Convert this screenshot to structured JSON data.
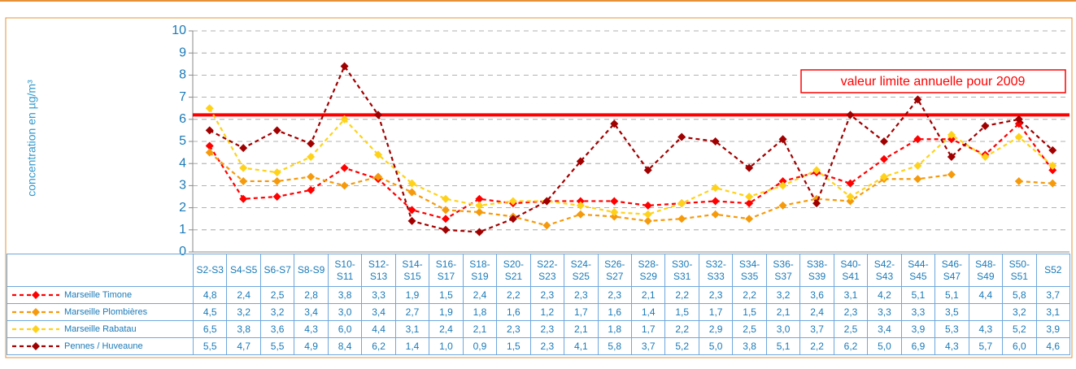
{
  "chart_data": {
    "type": "line",
    "y_label": "concentration en µg/m³",
    "categories": [
      "S2-S3",
      "S4-S5",
      "S6-S7",
      "S8-S9",
      "S10-S11",
      "S12-S13",
      "S14-S15",
      "S16-S17",
      "S18-S19",
      "S20-S21",
      "S22-S23",
      "S24-S25",
      "S26-S27",
      "S28-S29",
      "S30-S31",
      "S32-S33",
      "S34-S35",
      "S36-S37",
      "S38-S39",
      "S40-S41",
      "S42-S43",
      "S44-S45",
      "S46-S47",
      "S48-S49",
      "S50-S51",
      "S52"
    ],
    "series": [
      {
        "name": "Marseille Timone",
        "color": "#ff0000",
        "values": [
          4.8,
          2.4,
          2.5,
          2.8,
          3.8,
          3.3,
          1.9,
          1.5,
          2.4,
          2.2,
          2.3,
          2.3,
          2.3,
          2.1,
          2.2,
          2.3,
          2.2,
          3.2,
          3.6,
          3.1,
          4.2,
          5.1,
          5.1,
          4.4,
          5.8,
          3.7
        ],
        "value_labels": [
          "4,8",
          "2,4",
          "2,5",
          "2,8",
          "3,8",
          "3,3",
          "1,9",
          "1,5",
          "2,4",
          "2,2",
          "2,3",
          "2,3",
          "2,3",
          "2,1",
          "2,2",
          "2,3",
          "2,2",
          "3,2",
          "3,6",
          "3,1",
          "4,2",
          "5,1",
          "5,1",
          "4,4",
          "5,8",
          "3,7"
        ]
      },
      {
        "name": "Marseille Plombières",
        "color": "#f59a0c",
        "values": [
          4.5,
          3.2,
          3.2,
          3.4,
          3.0,
          3.4,
          2.7,
          1.9,
          1.8,
          1.6,
          1.2,
          1.7,
          1.6,
          1.4,
          1.5,
          1.7,
          1.5,
          2.1,
          2.4,
          2.3,
          3.3,
          3.3,
          3.5,
          null,
          3.2,
          3.1
        ],
        "value_labels": [
          "4,5",
          "3,2",
          "3,2",
          "3,4",
          "3,0",
          "3,4",
          "2,7",
          "1,9",
          "1,8",
          "1,6",
          "1,2",
          "1,7",
          "1,6",
          "1,4",
          "1,5",
          "1,7",
          "1,5",
          "2,1",
          "2,4",
          "2,3",
          "3,3",
          "3,3",
          "3,5",
          null,
          "3,2",
          "3,1"
        ]
      },
      {
        "name": "Marseille Rabatau",
        "color": "#ffd21a",
        "values": [
          6.5,
          3.8,
          3.6,
          4.3,
          6.0,
          4.4,
          3.1,
          2.4,
          2.1,
          2.3,
          2.3,
          2.1,
          1.8,
          1.7,
          2.2,
          2.9,
          2.5,
          3.0,
          3.7,
          2.5,
          3.4,
          3.9,
          5.3,
          4.3,
          5.2,
          3.9
        ],
        "value_labels": [
          "6,5",
          "3,8",
          "3,6",
          "4,3",
          "6,0",
          "4,4",
          "3,1",
          "2,4",
          "2,1",
          "2,3",
          "2,3",
          "2,1",
          "1,8",
          "1,7",
          "2,2",
          "2,9",
          "2,5",
          "3,0",
          "3,7",
          "2,5",
          "3,4",
          "3,9",
          "5,3",
          "4,3",
          "5,2",
          "3,9"
        ]
      },
      {
        "name": "Pennes / Huveaune",
        "color": "#a00000",
        "values": [
          5.5,
          4.7,
          5.5,
          4.9,
          8.4,
          6.2,
          1.4,
          1.0,
          0.9,
          1.5,
          2.3,
          4.1,
          5.8,
          3.7,
          5.2,
          5.0,
          3.8,
          5.1,
          2.2,
          6.2,
          5.0,
          6.9,
          4.3,
          5.7,
          6.0,
          4.6
        ],
        "value_labels": [
          "5,5",
          "4,7",
          "5,5",
          "4,9",
          "8,4",
          "6,2",
          "1,4",
          "1,0",
          "0,9",
          "1,5",
          "2,3",
          "4,1",
          "5,8",
          "3,7",
          "5,2",
          "5,0",
          "3,8",
          "5,1",
          "2,2",
          "6,2",
          "5,0",
          "6,9",
          "4,3",
          "5,7",
          "6,0",
          "4,6"
        ]
      }
    ],
    "ylim": [
      0,
      10
    ],
    "yticks": [
      0,
      1,
      2,
      3,
      4,
      5,
      6,
      7,
      8,
      9,
      10
    ],
    "grid": true,
    "limit": {
      "value": 6.2,
      "label": "valeur limite annuelle pour 2009",
      "color": "#ff0000"
    }
  }
}
